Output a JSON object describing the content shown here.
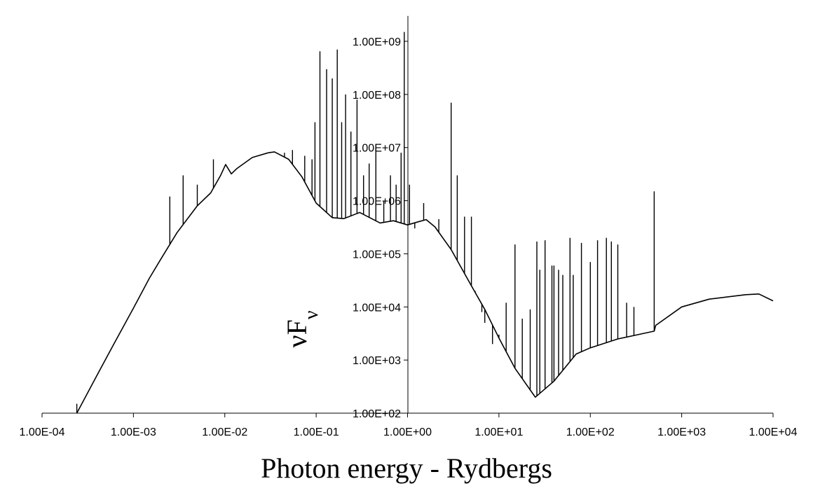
{
  "chart_data": {
    "type": "line",
    "title": "",
    "xlabel": "Photon energy - Rydbergs",
    "ylabel": {
      "main": "νF",
      "sub": "ν"
    },
    "x_scale": "log",
    "y_scale": "log",
    "xlim": [
      0.0001,
      10000
    ],
    "ylim": [
      100,
      3000000000
    ],
    "x_ticks": [
      "1.00E-04",
      "1.00E-03",
      "1.00E-02",
      "1.00E-01",
      "1.00E+00",
      "1.00E+01",
      "1.00E+02",
      "1.00E+03",
      "1.00E+04"
    ],
    "y_ticks": [
      "1.00E+02",
      "1.00E+03",
      "1.00E+04",
      "1.00E+05",
      "1.00E+06",
      "1.00E+07",
      "1.00E+08",
      "1.00E+09"
    ],
    "grid": false,
    "legend": "none",
    "line_color": "#000000",
    "series": [
      {
        "continuum": {
          "x": [
            0.00024,
            0.0004,
            0.0006,
            0.001,
            0.0015,
            0.002,
            0.003,
            0.005,
            0.007,
            0.009,
            0.0102,
            0.0118,
            0.0135,
            0.02,
            0.03,
            0.035,
            0.05,
            0.07,
            0.1,
            0.15,
            0.2,
            0.3,
            0.5,
            0.7,
            1.0,
            1.3,
            1.6,
            2.0,
            3.0,
            5.0,
            7.0,
            10,
            15,
            25,
            40,
            70,
            100,
            200,
            500,
            520,
            1000,
            2000,
            5000,
            7000,
            10000
          ],
          "y": [
            100,
            520,
            1900,
            9500,
            35000,
            80000,
            250000,
            800000,
            1400000,
            3000000,
            4800000,
            3200000,
            4000000,
            6500000,
            8000000,
            8300000,
            6000000,
            2800000,
            900000,
            480000,
            460000,
            600000,
            380000,
            420000,
            350000,
            400000,
            440000,
            320000,
            120000,
            25000,
            9000,
            2600,
            700,
            200,
            400,
            1300,
            1700,
            2500,
            3500,
            4500,
            10000,
            14000,
            17000,
            17500,
            13000
          ]
        },
        "lines": {
          "x": [
            0.00024,
            0.0025,
            0.0035,
            0.005,
            0.0075,
            0.045,
            0.055,
            0.075,
            0.09,
            0.097,
            0.11,
            0.13,
            0.15,
            0.17,
            0.19,
            0.21,
            0.24,
            0.28,
            0.33,
            0.38,
            0.45,
            0.55,
            0.65,
            0.75,
            0.85,
            0.92,
            1.05,
            1.2,
            1.5,
            2.2,
            3.0,
            3.5,
            4.2,
            5.0,
            5.5,
            6.5,
            7.0,
            8.5,
            10,
            12,
            15,
            18,
            22,
            26,
            28,
            32,
            38,
            40,
            45,
            50,
            60,
            65,
            80,
            100,
            120,
            150,
            170,
            200,
            250,
            300,
            500
          ],
          "y": [
            150,
            1200000,
            3000000,
            2000000,
            6000000,
            8000000,
            9000000,
            7000000,
            6000000,
            30000000,
            650000000,
            300000000,
            200000000,
            700000000,
            30000000,
            100000000,
            20000000,
            80000000,
            3000000,
            5000000,
            10000000,
            1000000,
            3000000,
            2000000,
            8000000,
            1500000000,
            2000000,
            300000,
            900000,
            450000,
            70000000,
            3000000,
            500000,
            500000,
            20000,
            8000,
            5000,
            2000,
            3000,
            12000,
            150000,
            6000,
            9000,
            170000,
            50000,
            180000,
            60000,
            60000,
            50000,
            40000,
            200000,
            40000,
            160000,
            70000,
            180000,
            200000,
            170000,
            150000,
            12000,
            10000,
            1500000
          ]
        }
      }
    ]
  }
}
